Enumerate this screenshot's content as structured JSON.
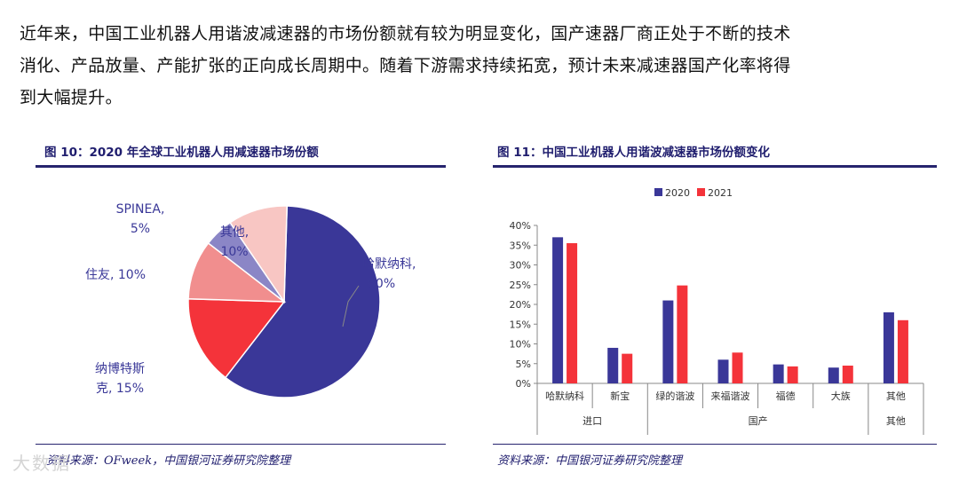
{
  "intro": {
    "lines": [
      "近年来，中国工业机器人用谐波减速器的市场份额就有较为明显变化，国产速器厂商正处于不断的技术",
      "消化、产品放量、产能扩张的正向成长周期中。随着下游需求持续拓宽，预计未来减速器国产化率将得",
      "到大幅提升。"
    ]
  },
  "figure10": {
    "title": "图 10：2020 年全球工业机器人用减速器市场份额",
    "source": "资料来源：OFweek，中国银河证券研究院整理"
  },
  "figure11": {
    "title": "图 11：中国工业机器人用谐波减速器市场份额变化",
    "source": "资料来源：中国银河证券研究院整理"
  },
  "watermark": "大数据",
  "colors": {
    "navy": "#3a3798",
    "red": "#f4333a",
    "salmon": "#f18e8e",
    "lavender": "#8b86c6",
    "pink": "#f8c6c3",
    "title_blue": "#1f1d6e"
  },
  "chart_data": [
    {
      "type": "pie",
      "title": "图 10：2020 年全球工业机器人用减速器市场份额",
      "slices": [
        {
          "name": "哈默纳科",
          "value": 60,
          "label_name": "哈默纳科,",
          "label_value": "60%",
          "color": "#3a3798"
        },
        {
          "name": "纳博特斯克",
          "value": 15,
          "label_name": "纳博特斯",
          "label_value": "克, 15%",
          "color": "#f4333a"
        },
        {
          "name": "住友",
          "value": 10,
          "label_name": "住友, 10%",
          "label_value": "",
          "color": "#f18e8e"
        },
        {
          "name": "SPINEA",
          "value": 5,
          "label_name": "SPINEA,",
          "label_value": "5%",
          "color": "#8b86c6"
        },
        {
          "name": "其他",
          "value": 10,
          "label_name": "其他,",
          "label_value": "10%",
          "color": "#f8c6c3"
        }
      ]
    },
    {
      "type": "bar",
      "title": "图 11：中国工业机器人用谐波减速器市场份额变化",
      "categories": [
        "哈默纳科",
        "新宝",
        "绿的谐波",
        "来福谐波",
        "福德",
        "大族",
        "其他"
      ],
      "groups": [
        {
          "label": "进口",
          "span": [
            0,
            1
          ]
        },
        {
          "label": "国产",
          "span": [
            2,
            5
          ]
        },
        {
          "label": "其他",
          "span": [
            6,
            6
          ]
        }
      ],
      "series": [
        {
          "name": "2020",
          "color": "#3a3798",
          "values": [
            37,
            9,
            21,
            6,
            4.8,
            4,
            18
          ]
        },
        {
          "name": "2021",
          "color": "#f4333a",
          "values": [
            35.5,
            7.5,
            24.8,
            7.8,
            4.3,
            4.5,
            16
          ]
        }
      ],
      "ylim": [
        0,
        40
      ],
      "yticks": [
        "0%",
        "5%",
        "10%",
        "15%",
        "20%",
        "25%",
        "30%",
        "35%",
        "40%"
      ],
      "ytick_values": [
        0,
        5,
        10,
        15,
        20,
        25,
        30,
        35,
        40
      ],
      "legend_position": "top-center",
      "grid": false
    }
  ]
}
